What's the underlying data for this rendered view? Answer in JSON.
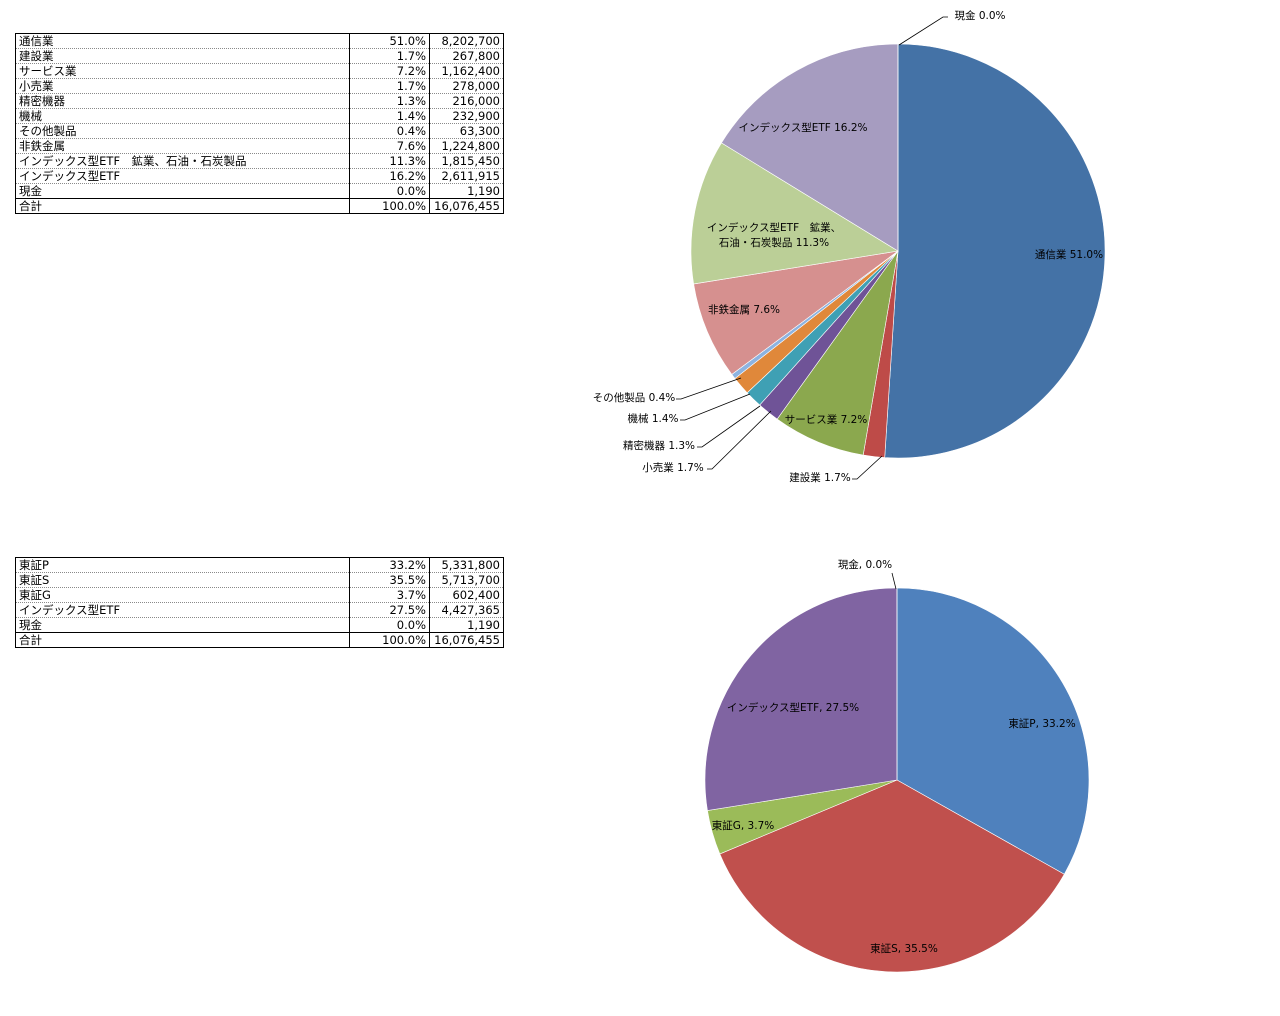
{
  "table1": {
    "rows": [
      {
        "name": "通信業",
        "pct": "51.0%",
        "value": "8,202,700"
      },
      {
        "name": "建設業",
        "pct": "1.7%",
        "value": "267,800"
      },
      {
        "name": "サービス業",
        "pct": "7.2%",
        "value": "1,162,400"
      },
      {
        "name": "小売業",
        "pct": "1.7%",
        "value": "278,000"
      },
      {
        "name": "精密機器",
        "pct": "1.3%",
        "value": "216,000"
      },
      {
        "name": "機械",
        "pct": "1.4%",
        "value": "232,900"
      },
      {
        "name": "その他製品",
        "pct": "0.4%",
        "value": "63,300"
      },
      {
        "name": "非鉄金属",
        "pct": "7.6%",
        "value": "1,224,800"
      },
      {
        "name": "インデックス型ETF　鉱業、石油・石炭製品",
        "pct": "11.3%",
        "value": "1,815,450"
      },
      {
        "name": "インデックス型ETF",
        "pct": "16.2%",
        "value": "2,611,915"
      },
      {
        "name": "現金",
        "pct": "0.0%",
        "value": "1,190"
      }
    ],
    "total": {
      "name": "合計",
      "pct": "100.0%",
      "value": "16,076,455"
    }
  },
  "table2": {
    "rows": [
      {
        "name": "東証P",
        "pct": "33.2%",
        "value": "5,331,800"
      },
      {
        "name": "東証S",
        "pct": "35.5%",
        "value": "5,713,700"
      },
      {
        "name": "東証G",
        "pct": "3.7%",
        "value": "602,400"
      },
      {
        "name": "インデックス型ETF",
        "pct": "27.5%",
        "value": "4,427,365"
      },
      {
        "name": "現金",
        "pct": "0.0%",
        "value": "1,190"
      }
    ],
    "total": {
      "name": "合計",
      "pct": "100.0%",
      "value": "16,076,455"
    }
  },
  "chart_data": [
    {
      "type": "pie",
      "title": "",
      "slices": [
        {
          "label": "通信業 51.0%",
          "value": 8202700,
          "color": "#4472A6"
        },
        {
          "label": "建設業 1.7%",
          "value": 267800,
          "color": "#BE4B48"
        },
        {
          "label": "サービス業 7.2%",
          "value": 1162400,
          "color": "#8BA84E"
        },
        {
          "label": "小売業 1.7%",
          "value": 278000,
          "color": "#6F5397"
        },
        {
          "label": "精密機器 1.3%",
          "value": 216000,
          "color": "#3FA0B4"
        },
        {
          "label": "機械 1.4%",
          "value": 232900,
          "color": "#E0883A"
        },
        {
          "label": "その他製品 0.4%",
          "value": 63300,
          "color": "#8DB3E0"
        },
        {
          "label": "非鉄金属 7.6%",
          "value": 1224800,
          "color": "#D6908F"
        },
        {
          "label": "インデックス型ETF　鉱業、|石油・石炭製品 11.3%",
          "value": 1815450,
          "color": "#BBCF97"
        },
        {
          "label": "インデックス型ETF 16.2%",
          "value": 2611915,
          "color": "#A69CC0"
        },
        {
          "label": "現金 0.0%",
          "value": 1190,
          "color": "#8CC6D4"
        }
      ]
    },
    {
      "type": "pie",
      "title": "",
      "slices": [
        {
          "label": "東証P, 33.2%",
          "value": 5331800,
          "color": "#4F81BD"
        },
        {
          "label": "東証S, 35.5%",
          "value": 5713700,
          "color": "#C0504D"
        },
        {
          "label": "東証G, 3.7%",
          "value": 602400,
          "color": "#9BBB59"
        },
        {
          "label": "インデックス型ETF, 27.5%",
          "value": 4427365,
          "color": "#8064A2"
        },
        {
          "label": "現金, 0.0%",
          "value": 1190,
          "color": "#4BACC6"
        }
      ]
    }
  ]
}
